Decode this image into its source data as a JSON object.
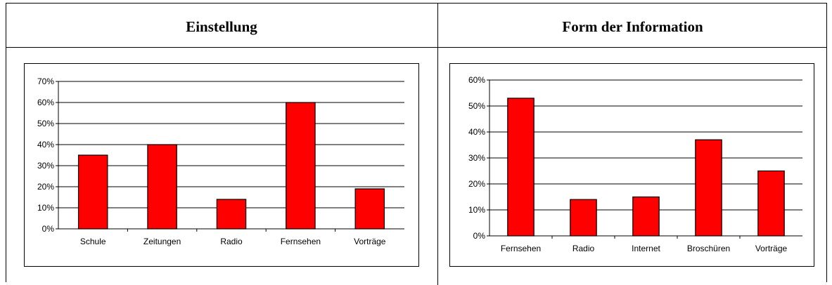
{
  "chart_data": [
    {
      "type": "bar",
      "title": "Einstellung",
      "categories": [
        "Schule",
        "Zeitungen",
        "Radio",
        "Fernsehen",
        "Vorträge"
      ],
      "values": [
        35,
        40,
        14,
        60,
        19
      ],
      "yticks": [
        "0%",
        "10%",
        "20%",
        "30%",
        "40%",
        "50%",
        "60%",
        "70%"
      ],
      "ylim": [
        0,
        70
      ],
      "bar_color": "#ff0000",
      "grid": true,
      "legend": "none"
    },
    {
      "type": "bar",
      "title": "Form der Information",
      "categories": [
        "Fernsehen",
        "Radio",
        "Internet",
        "Broschüren",
        "Vorträge"
      ],
      "values": [
        53,
        14,
        15,
        37,
        25
      ],
      "yticks": [
        "0%",
        "10%",
        "20%",
        "30%",
        "40%",
        "50%",
        "60%"
      ],
      "ylim": [
        0,
        60
      ],
      "bar_color": "#ff0000",
      "grid": true,
      "legend": "none"
    }
  ]
}
